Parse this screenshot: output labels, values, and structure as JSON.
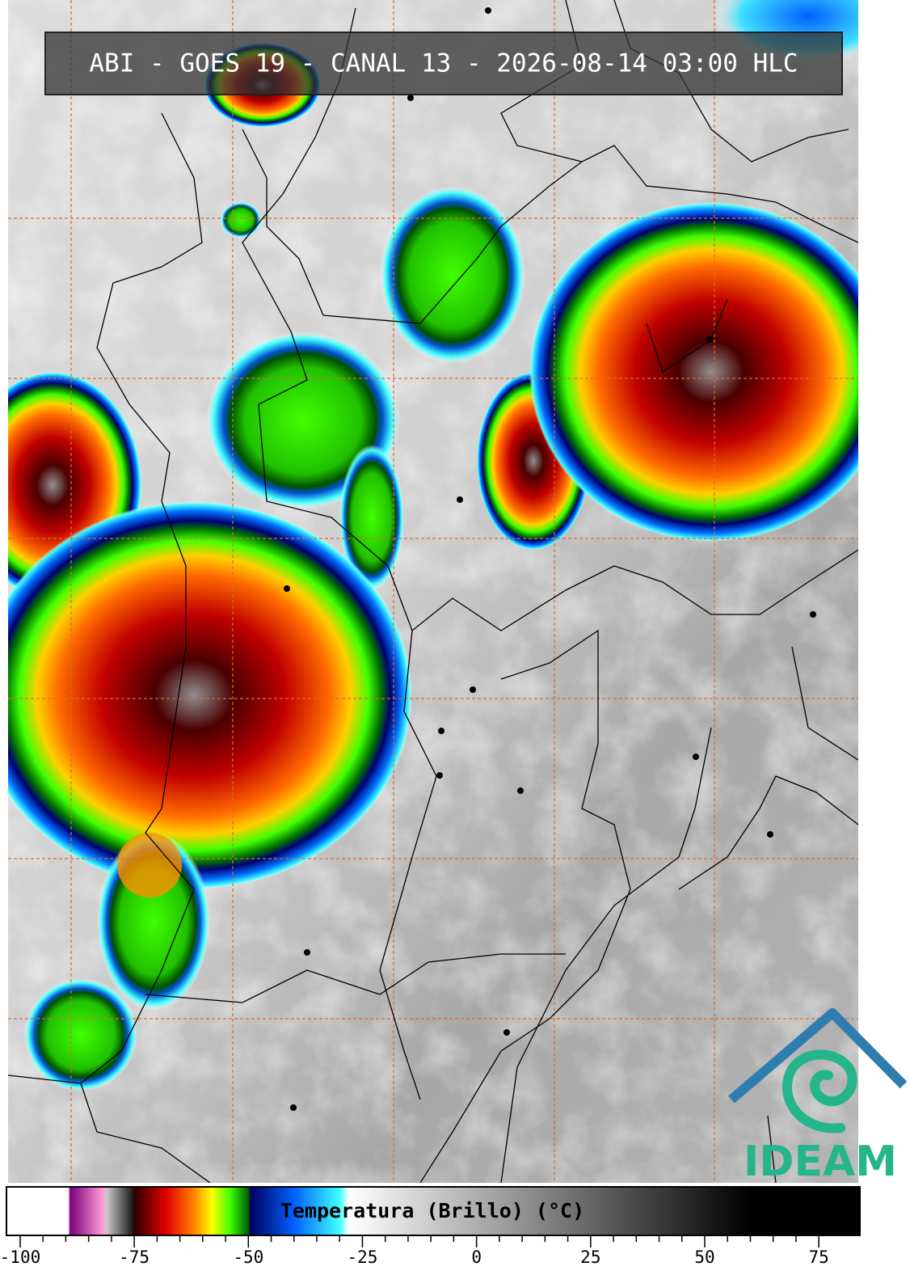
{
  "title": "ABI - GOES 19 - CANAL 13 - 2026-08-14 03:00 HLC",
  "colorbar": {
    "label": "Temperatura (Brillo) (°C)",
    "lim": [
      -103,
      84
    ],
    "ticks": [
      -100,
      -75,
      -50,
      -25,
      0,
      25,
      50,
      75
    ],
    "stops": [
      {
        "value": -103,
        "color": "#ffffff"
      },
      {
        "value": -89.5,
        "color": "#ffffff"
      },
      {
        "value": -89,
        "color": "#7a007a"
      },
      {
        "value": -82,
        "color": "#ff9ad5"
      },
      {
        "value": -81,
        "color": "#c8c8c8"
      },
      {
        "value": -75.5,
        "color": "#202020"
      },
      {
        "value": -75,
        "color": "#300000"
      },
      {
        "value": -68,
        "color": "#e00000"
      },
      {
        "value": -62,
        "color": "#ff8000"
      },
      {
        "value": -58,
        "color": "#ffff00"
      },
      {
        "value": -54,
        "color": "#40ff00"
      },
      {
        "value": -50,
        "color": "#006000"
      },
      {
        "value": -49.5,
        "color": "#000060"
      },
      {
        "value": -40,
        "color": "#0060ff"
      },
      {
        "value": -30,
        "color": "#40ffff"
      },
      {
        "value": -28,
        "color": "#ffffff"
      },
      {
        "value": -20,
        "color": "#e8e8e8"
      },
      {
        "value": 60,
        "color": "#000000"
      },
      {
        "value": 84,
        "color": "#000000"
      }
    ]
  },
  "logo": {
    "text": "IDEAM"
  }
}
